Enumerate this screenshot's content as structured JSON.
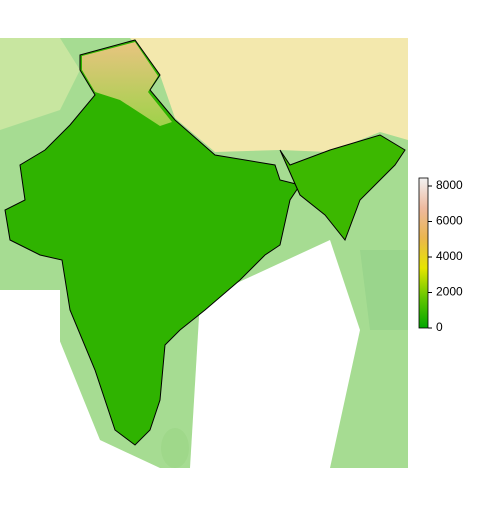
{
  "legend": {
    "range": [
      0,
      8450
    ],
    "ticks": [
      0,
      2000,
      4000,
      6000,
      8000
    ],
    "colors": [
      "#00a600",
      "#63c600",
      "#e6e600",
      "#eab64e",
      "#eeb99f",
      "#f2f2f2"
    ]
  }
}
